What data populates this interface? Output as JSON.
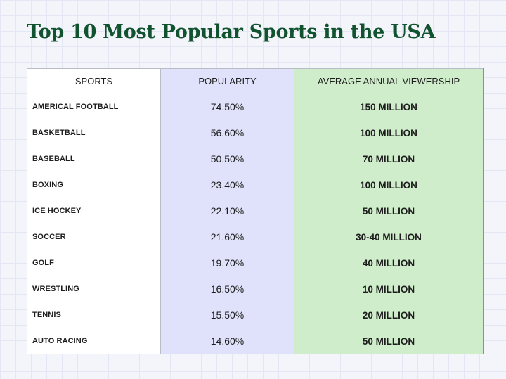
{
  "title": "Top 10 Most Popular Sports in the USA",
  "table": {
    "headers": [
      "SPORTS",
      "POPULARITY",
      "AVERAGE ANNUAL VIEWERSHIP"
    ],
    "rows": [
      {
        "sport": "AMERICAL FOOTBALL",
        "popularity": "74.50%",
        "viewership": "150 MILLION"
      },
      {
        "sport": "BASKETBALL",
        "popularity": "56.60%",
        "viewership": "100 MILLION"
      },
      {
        "sport": "BASEBALL",
        "popularity": "50.50%",
        "viewership": "70 MILLION"
      },
      {
        "sport": "BOXING",
        "popularity": "23.40%",
        "viewership": "100 MILLION"
      },
      {
        "sport": "ICE HOCKEY",
        "popularity": "22.10%",
        "viewership": "50 MILLION"
      },
      {
        "sport": "SOCCER",
        "popularity": "21.60%",
        "viewership": "30-40 MILLION"
      },
      {
        "sport": "GOLF",
        "popularity": "19.70%",
        "viewership": "40 MILLION"
      },
      {
        "sport": "WRESTLING",
        "popularity": "16.50%",
        "viewership": "10 MILLION"
      },
      {
        "sport": "TENNIS",
        "popularity": "15.50%",
        "viewership": "20 MILLION"
      },
      {
        "sport": "AUTO RACING",
        "popularity": "14.60%",
        "viewership": "50 MILLION"
      }
    ]
  },
  "colors": {
    "title": "#11522f",
    "popularity_column": "#dfe2fa",
    "viewership_column": "#cfeccb",
    "background": "#f3f5fb"
  }
}
